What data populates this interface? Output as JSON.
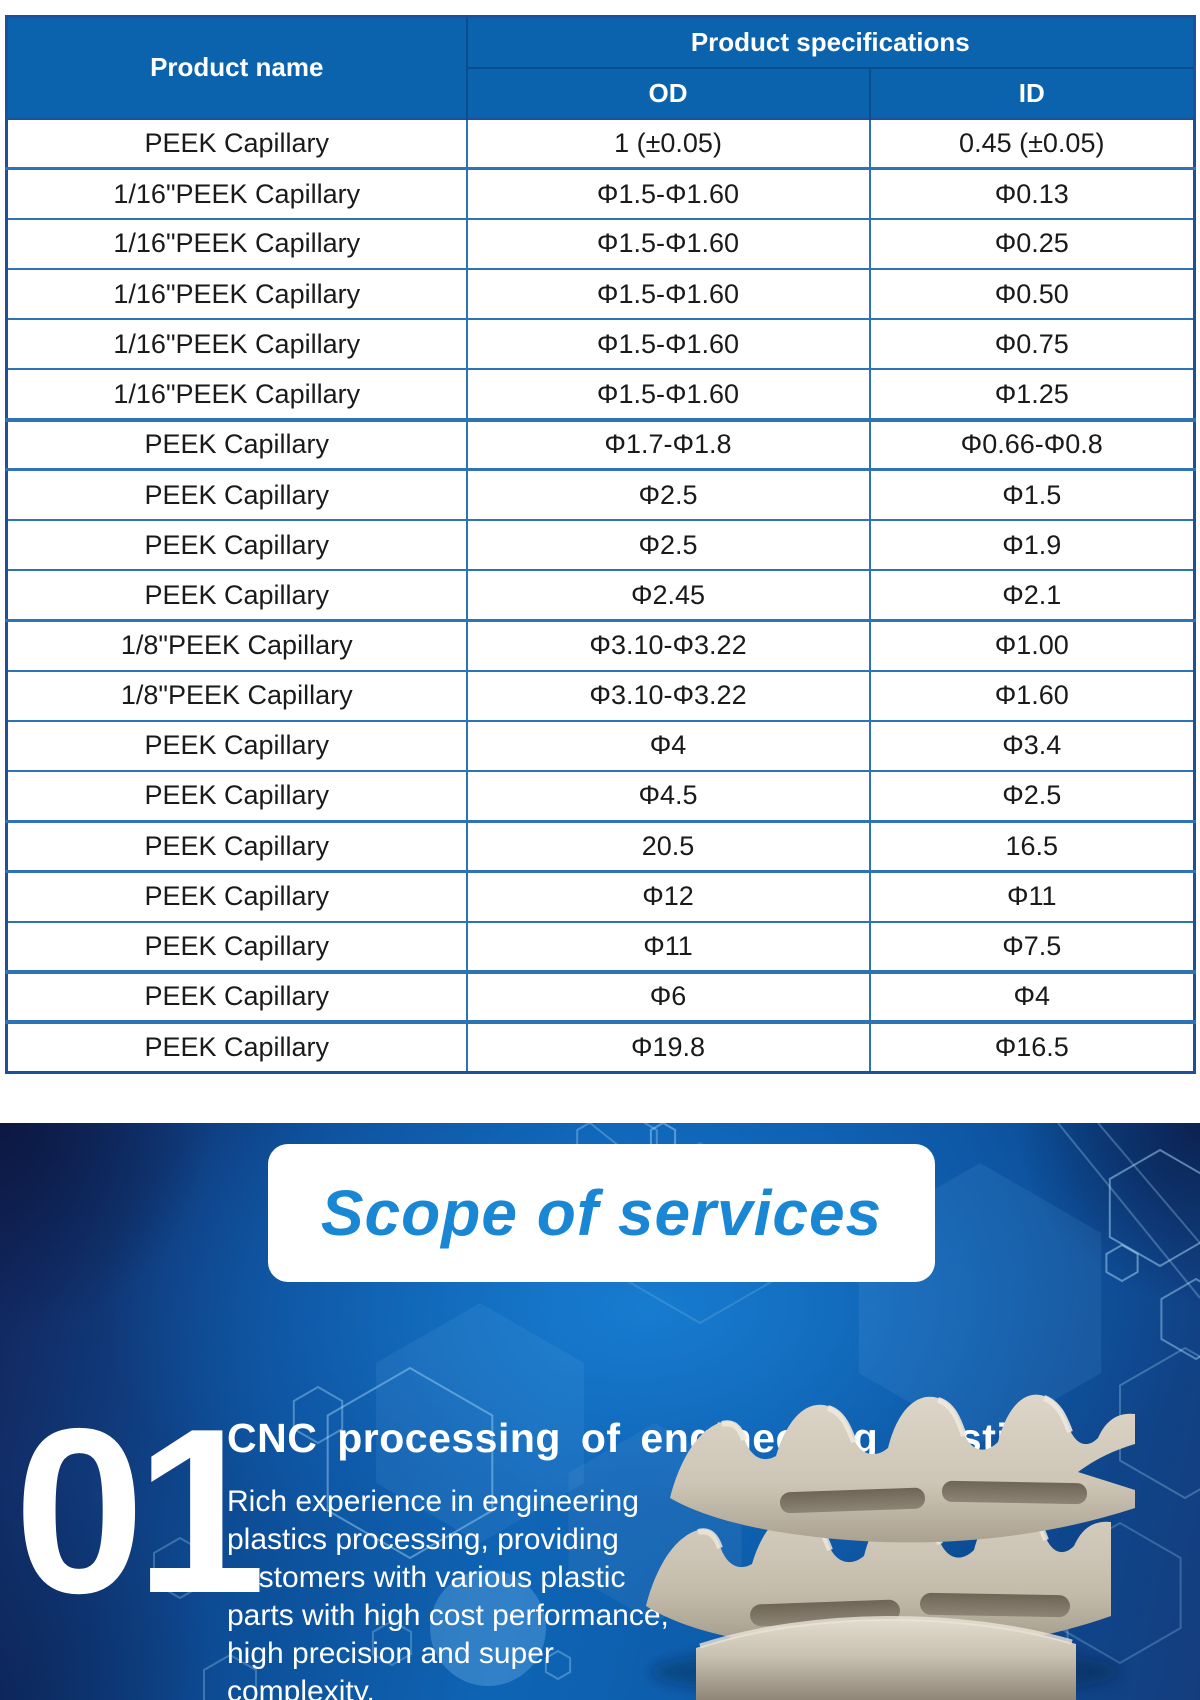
{
  "table": {
    "title_col": "Product name",
    "spec_group": "Product specifications",
    "col_od": "OD",
    "col_id": "ID",
    "rows": [
      {
        "name": "PEEK Capillary",
        "od": "1 (±0.05)",
        "id": "0.45 (±0.05)"
      },
      {
        "name": "1/16\"PEEK Capillary",
        "od": "Φ1.5-Φ1.60",
        "id": "Φ0.13"
      },
      {
        "name": "1/16\"PEEK Capillary",
        "od": "Φ1.5-Φ1.60",
        "id": "Φ0.25"
      },
      {
        "name": "1/16\"PEEK Capillary",
        "od": "Φ1.5-Φ1.60",
        "id": "Φ0.50"
      },
      {
        "name": "1/16\"PEEK Capillary",
        "od": "Φ1.5-Φ1.60",
        "id": "Φ0.75"
      },
      {
        "name": "1/16\"PEEK Capillary",
        "od": "Φ1.5-Φ1.60",
        "id": "Φ1.25"
      },
      {
        "name": "PEEK Capillary",
        "od": "Φ1.7-Φ1.8",
        "id": "Φ0.66-Φ0.8"
      },
      {
        "name": "PEEK Capillary",
        "od": "Φ2.5",
        "id": "Φ1.5"
      },
      {
        "name": "PEEK Capillary",
        "od": "Φ2.5",
        "id": "Φ1.9"
      },
      {
        "name": "PEEK Capillary",
        "od": "Φ2.45",
        "id": "Φ2.1"
      },
      {
        "name": "1/8\"PEEK Capillary",
        "od": "Φ3.10-Φ3.22",
        "id": "Φ1.00"
      },
      {
        "name": "1/8\"PEEK Capillary",
        "od": "Φ3.10-Φ3.22",
        "id": "Φ1.60"
      },
      {
        "name": "PEEK Capillary",
        "od": "Φ4",
        "id": "Φ3.4"
      },
      {
        "name": "PEEK Capillary",
        "od": "Φ4.5",
        "id": "Φ2.5"
      },
      {
        "name": "PEEK Capillary",
        "od": "20.5",
        "id": "16.5"
      },
      {
        "name": "PEEK Capillary",
        "od": "Φ12",
        "id": "Φ11"
      },
      {
        "name": "PEEK Capillary",
        "od": "Φ11",
        "id": "Φ7.5"
      },
      {
        "name": "PEEK Capillary",
        "od": "Φ6",
        "id": "Φ4"
      },
      {
        "name": "PEEK Capillary",
        "od": "Φ19.8",
        "id": "Φ16.5"
      }
    ]
  },
  "services": {
    "section_title": "Scope of services",
    "items": [
      {
        "number": "01",
        "title": "CNC processing of engineering plastics",
        "description_lines": [
          "Rich experience in engineering",
          "plastics processing, providing",
          "customers with various plastic",
          "parts with high cost performance,",
          "high precision and super",
          "complexity."
        ]
      }
    ]
  },
  "colors": {
    "table-header-bg": "#0b63ae",
    "table-border": "#2e74b5",
    "table-border-dark": "#1e4f9c",
    "header-divider": "#0a4d8c",
    "scope-title": "#1987d4",
    "section-bg-bright": "#0e6ec2",
    "section-bg-dark": "#13245a",
    "text-light": "#ffffff",
    "part-beige": "#d3cbbc"
  }
}
